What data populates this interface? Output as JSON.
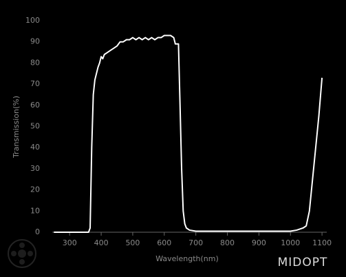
{
  "chart_data": {
    "type": "line",
    "xlabel": "Wavelength(nm)",
    "ylabel": "Transmission(%)",
    "logo": "MIDOPT",
    "xlim": [
      245,
      1115
    ],
    "ylim": [
      0,
      100
    ],
    "xticks": [
      300,
      400,
      500,
      600,
      700,
      800,
      900,
      1000,
      1100
    ],
    "yticks": [
      0,
      10,
      20,
      30,
      40,
      50,
      60,
      70,
      80,
      90,
      100
    ],
    "series": [
      {
        "color": "#ffffff",
        "x": [
          250,
          360,
          365,
          370,
          375,
          380,
          390,
          395,
          400,
          405,
          410,
          420,
          430,
          440,
          450,
          460,
          470,
          480,
          490,
          500,
          510,
          520,
          530,
          540,
          550,
          560,
          570,
          580,
          590,
          600,
          610,
          620,
          630,
          635,
          645,
          650,
          655,
          660,
          665,
          670,
          680,
          700,
          800,
          950,
          1000,
          1020,
          1040,
          1050,
          1060,
          1070,
          1080,
          1090,
          1100
        ],
        "values": [
          0,
          0,
          2,
          40,
          65,
          72,
          78,
          80,
          83,
          82,
          84,
          85,
          86,
          87,
          88,
          90,
          90,
          91,
          91,
          92,
          91,
          92,
          91,
          92,
          91,
          92,
          91,
          92,
          92,
          93,
          93,
          93,
          92,
          89,
          89,
          60,
          30,
          10,
          4,
          2,
          1,
          0.5,
          0.5,
          0.5,
          0.5,
          1,
          2,
          3,
          10,
          25,
          40,
          55,
          73
        ]
      }
    ]
  }
}
